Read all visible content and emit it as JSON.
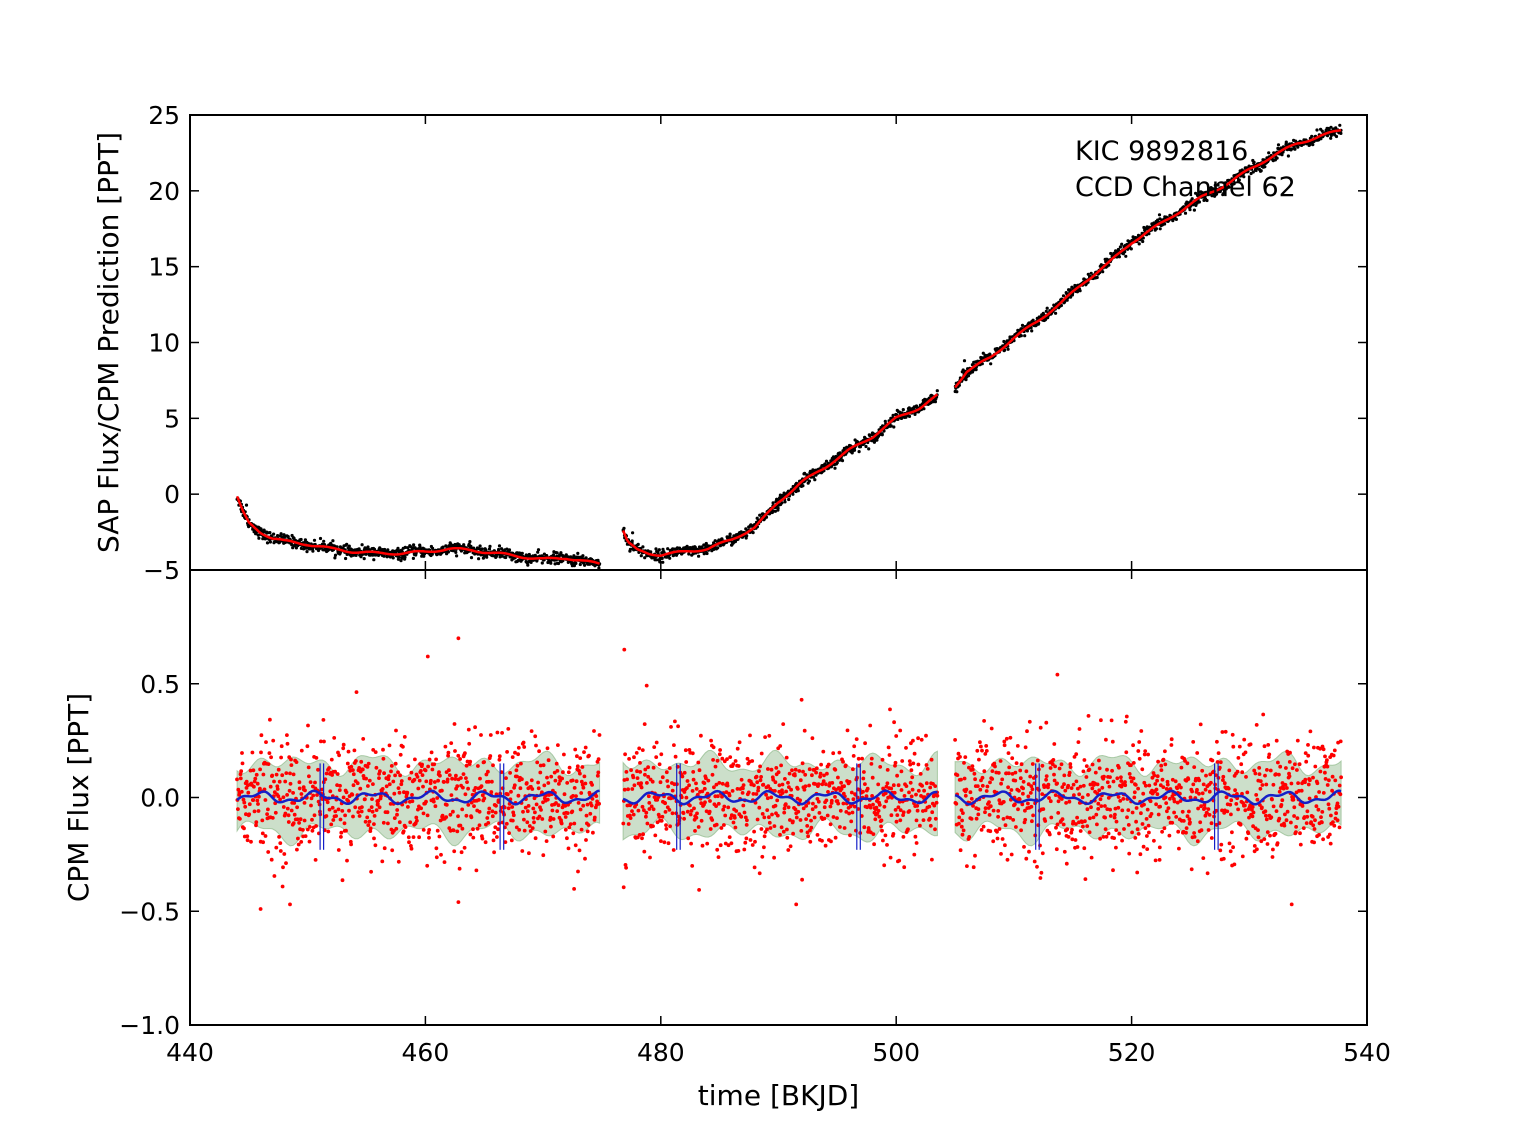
{
  "chart_data": [
    {
      "type": "scatter",
      "panel": "top",
      "ylabel": "SAP Flux/CPM Prediction [PPT]",
      "xlabel": "",
      "xlim": [
        440,
        540
      ],
      "ylim": [
        -5,
        25
      ],
      "yticks": [
        -5,
        0,
        5,
        10,
        15,
        20,
        25
      ],
      "yticks_labels": [
        "−5",
        "0",
        "5",
        "10",
        "15",
        "20",
        "25"
      ],
      "xticks": [
        440,
        460,
        480,
        500,
        520,
        540
      ],
      "annotations": [
        "KIC 9892816",
        "CCD Channel 62"
      ],
      "annotation_position": "top-right",
      "grid": false,
      "series": [
        {
          "kind": "points",
          "color": "#000000",
          "segments": [
            {
              "x": [
                444.0,
                444.5,
                445.0,
                446.0,
                447.0,
                448.0,
                450.0,
                452.0,
                454.0,
                456.0,
                458.0,
                460.0,
                462.0,
                464.0,
                466.0,
                468.0,
                470.0,
                472.0,
                474.0,
                474.8
              ],
              "y": [
                -0.2,
                -1.2,
                -1.9,
                -2.5,
                -2.9,
                -3.1,
                -3.3,
                -3.6,
                -3.8,
                -3.9,
                -3.9,
                -3.8,
                -3.6,
                -3.7,
                -3.9,
                -4.1,
                -4.3,
                -4.2,
                -4.5,
                -4.6
              ]
            },
            {
              "x": [
                476.8,
                477.2,
                478.0,
                479.0,
                480.0,
                482.0,
                484.0,
                486.0,
                488.0,
                490.0,
                492.0,
                494.0,
                496.0,
                498.0,
                500.0,
                502.0,
                503.5
              ],
              "y": [
                -2.4,
                -3.2,
                -3.7,
                -3.9,
                -4.0,
                -3.8,
                -3.6,
                -3.0,
                -2.2,
                -0.5,
                0.8,
                1.8,
                2.9,
                3.8,
                5.0,
                5.7,
                6.5
              ]
            },
            {
              "x": [
                505.0,
                506.0,
                508.0,
                510.0,
                512.0,
                514.0,
                516.0,
                518.0,
                520.0,
                522.0,
                524.0,
                526.0,
                528.0,
                530.0,
                532.0,
                534.0,
                536.0,
                537.8
              ],
              "y": [
                7.1,
                8.1,
                9.0,
                10.3,
                11.4,
                12.6,
                14.0,
                15.2,
                16.6,
                17.6,
                18.6,
                19.6,
                20.4,
                21.4,
                22.3,
                23.1,
                23.6,
                24.0
              ]
            }
          ]
        },
        {
          "kind": "line",
          "color": "#ff0000",
          "description_role": "CPM prediction"
        }
      ]
    },
    {
      "type": "scatter",
      "panel": "bottom",
      "ylabel": "CPM Flux [PPT]",
      "xlabel": "time [BKJD]",
      "xlim": [
        440,
        540
      ],
      "ylim": [
        -1.0,
        1.0
      ],
      "yticks": [
        -1.0,
        -0.5,
        0.0,
        0.5
      ],
      "yticks_labels": [
        "−1.0",
        "−0.5",
        "0.0",
        "0.5"
      ],
      "xticks": [
        440,
        460,
        480,
        500,
        520,
        540
      ],
      "xticks_labels": [
        "440",
        "460",
        "480",
        "500",
        "520",
        "540"
      ],
      "grid": false,
      "segments_x": [
        [
          444.0,
          474.8
        ],
        [
          476.8,
          503.5
        ],
        [
          505.0,
          537.8
        ]
      ],
      "points_color": "#ff0000",
      "points_scatter_std": 0.13,
      "band": {
        "color": "#8fb98a",
        "opacity": 0.45,
        "half_width": 0.15,
        "spread_variation": 0.05
      },
      "model": {
        "color": "#1520c8",
        "mean": 0.0,
        "amplitude": 0.02
      },
      "transit_markers": {
        "color": "#1520c8",
        "x": [
          451.2,
          466.5,
          481.5,
          496.8,
          512.0,
          527.2
        ],
        "ymin": -0.23,
        "ymax": 0.15
      },
      "notable_outliers": [
        {
          "x": 460.2,
          "y": 0.62
        },
        {
          "x": 462.8,
          "y": 0.7
        },
        {
          "x": 476.9,
          "y": 0.65
        },
        {
          "x": 491.5,
          "y": -0.47
        },
        {
          "x": 513.7,
          "y": 0.54
        },
        {
          "x": 533.6,
          "y": -0.47
        },
        {
          "x": 446.0,
          "y": -0.49
        },
        {
          "x": 448.5,
          "y": -0.47
        },
        {
          "x": 462.8,
          "y": -0.46
        }
      ]
    }
  ]
}
